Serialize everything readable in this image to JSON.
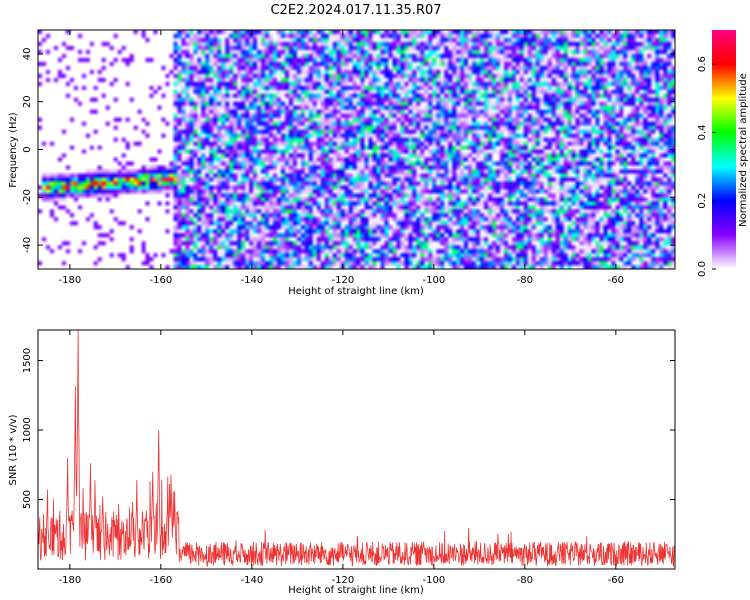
{
  "figure": {
    "title": "C2E2.2024.017.11.35.R07"
  },
  "chart_data": [
    {
      "type": "heatmap",
      "title": "C2E2.2024.017.11.35.R07",
      "xlabel": "Height of straight line (km)",
      "ylabel": "Frequency (Hz)",
      "xlim": [
        -187,
        -47
      ],
      "ylim": [
        -50,
        50
      ],
      "x_ticks": [
        -180,
        -160,
        -140,
        -120,
        -100,
        -80,
        -60
      ],
      "y_ticks": [
        -40,
        -20,
        0,
        20,
        40
      ],
      "colorbar": {
        "label": "Normalized spectral amplitude",
        "range": [
          0,
          0.7
        ],
        "ticks": [
          0.0,
          0.2,
          0.4,
          0.6
        ],
        "colors": [
          "#ffffff",
          "#8800ff",
          "#0000ff",
          "#00ffff",
          "#00ff00",
          "#ffff00",
          "#ff0000",
          "#ff0080"
        ]
      },
      "features": {
        "background_level": 0.03,
        "noise_region_x": [
          -157,
          -47
        ],
        "sparse_region_x": [
          -187,
          -157
        ],
        "signal_band": {
          "x_range": [
            -186,
            -156
          ],
          "freq_start_hz": -16,
          "freq_end_hz": -12,
          "peak_amplitude": 0.6
        }
      }
    },
    {
      "type": "line",
      "title": "",
      "xlabel": "Height of straight line (km)",
      "ylabel": "SNR (10 * v/v)",
      "xlim": [
        -187,
        -47
      ],
      "ylim": [
        0,
        1720
      ],
      "x_ticks": [
        -180,
        -160,
        -140,
        -120,
        -100,
        -80,
        -60
      ],
      "y_ticks": [
        500,
        1000,
        1500
      ],
      "color": "#ee3333",
      "baseline_level": 110,
      "peaks": [
        {
          "x": -178.2,
          "y": 1720
        },
        {
          "x": -178.8,
          "y": 1320
        },
        {
          "x": -180.5,
          "y": 800
        },
        {
          "x": -175.5,
          "y": 760
        },
        {
          "x": -174.5,
          "y": 640
        },
        {
          "x": -172.8,
          "y": 520
        },
        {
          "x": -165.3,
          "y": 640
        },
        {
          "x": -163.2,
          "y": 420
        },
        {
          "x": -160.5,
          "y": 1000
        },
        {
          "x": -161.8,
          "y": 700
        },
        {
          "x": -157.8,
          "y": 680
        },
        {
          "x": -157.0,
          "y": 560
        }
      ]
    }
  ]
}
